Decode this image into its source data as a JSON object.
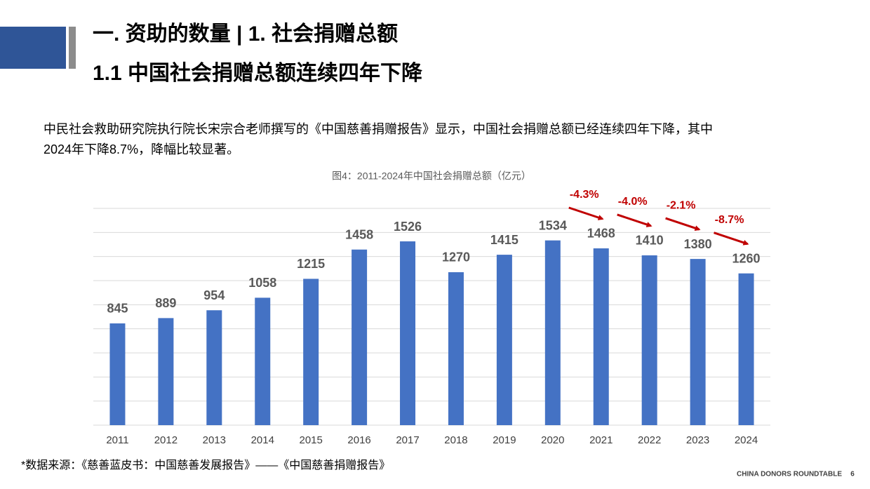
{
  "header": {
    "title": "一. 资助的数量 | 1. 社会捐赠总额",
    "subtitle": "1.1 中国社会捐赠总额连续四年下降"
  },
  "paragraph": [
    "中民社会救助研究院执行院长宋宗合老师撰写的《中国慈善捐赠报告》显示，中国社会捐赠总额已经连续四年下降，其中",
    "2024年下降8.7%，降幅比较显著。"
  ],
  "chart_data": {
    "type": "bar",
    "title": "图4：2011-2024年中国社会捐赠总额（亿元）",
    "categories": [
      "2011",
      "2012",
      "2013",
      "2014",
      "2015",
      "2016",
      "2017",
      "2018",
      "2019",
      "2020",
      "2021",
      "2022",
      "2023",
      "2024"
    ],
    "values": [
      845,
      889,
      954,
      1058,
      1215,
      1458,
      1526,
      1270,
      1415,
      1534,
      1468,
      1410,
      1380,
      1260
    ],
    "color": "#4472c4",
    "ylim": [
      0,
      1800
    ],
    "yticks": [
      0,
      200,
      400,
      600,
      800,
      1000,
      1200,
      1400,
      1600,
      1800
    ],
    "grid": true,
    "annotations": [
      "-4.3%",
      "-4.0%",
      "-2.1%",
      "-8.7%"
    ],
    "annotation_color": "#c00000"
  },
  "source": "*数据来源：《慈善蓝皮书：中国慈善发展报告》——《中国慈善捐赠报告》",
  "footer": {
    "brand": "CHINA DONORS ROUNDTABLE",
    "page": "6"
  }
}
